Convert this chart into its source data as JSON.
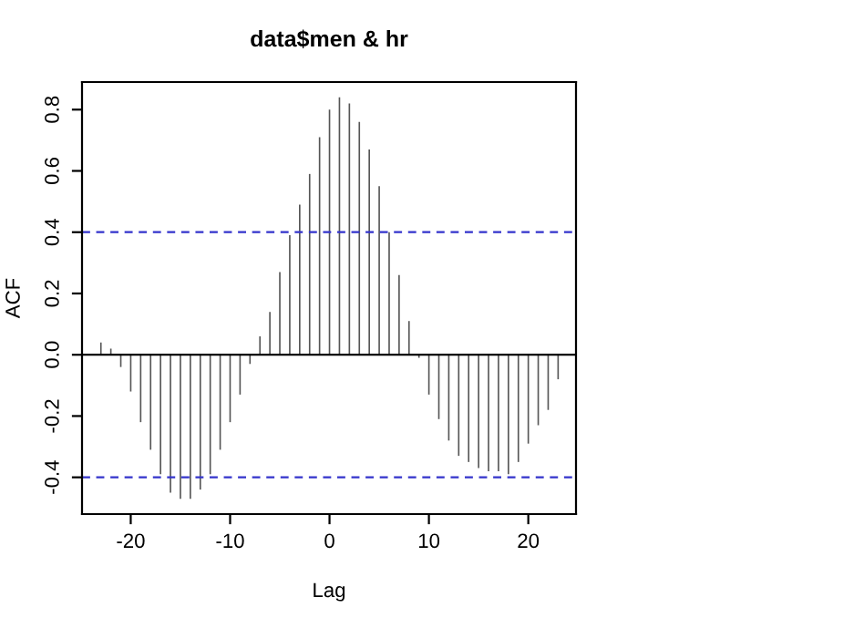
{
  "chart_data": {
    "type": "bar",
    "title": "data$men & hr",
    "xlabel": "Lag",
    "ylabel": "ACF",
    "x": [
      -23,
      -22,
      -21,
      -20,
      -19,
      -18,
      -17,
      -16,
      -15,
      -14,
      -13,
      -12,
      -11,
      -10,
      -9,
      -8,
      -7,
      -6,
      -5,
      -4,
      -3,
      -2,
      -1,
      0,
      1,
      2,
      3,
      4,
      5,
      6,
      7,
      8,
      9,
      10,
      11,
      12,
      13,
      14,
      15,
      16,
      17,
      18,
      19,
      20,
      21,
      22,
      23
    ],
    "values": [
      0.04,
      0.02,
      -0.04,
      -0.12,
      -0.22,
      -0.31,
      -0.39,
      -0.45,
      -0.47,
      -0.47,
      -0.44,
      -0.39,
      -0.31,
      -0.22,
      -0.13,
      -0.03,
      0.06,
      0.14,
      0.27,
      0.39,
      0.49,
      0.59,
      0.71,
      0.8,
      0.84,
      0.82,
      0.76,
      0.67,
      0.55,
      0.4,
      0.26,
      0.11,
      -0.01,
      -0.13,
      -0.21,
      -0.28,
      -0.33,
      -0.35,
      -0.37,
      -0.38,
      -0.38,
      -0.39,
      -0.35,
      -0.29,
      -0.23,
      -0.18,
      -0.08
    ],
    "color": "#555555",
    "xlim": [
      -24.9,
      24.8
    ],
    "ylim": [
      -0.52,
      0.89
    ],
    "xticks": [
      {
        "value": -20,
        "label": "-20"
      },
      {
        "value": -10,
        "label": "-10"
      },
      0,
      10,
      20
    ],
    "yticks": [
      {
        "value": -0.4,
        "label": "-0.4"
      },
      {
        "value": -0.2,
        "label": "-0.2"
      },
      {
        "value": 0,
        "label": "0.0"
      },
      0.2,
      0.4,
      0.6,
      0.8
    ],
    "ref_lines": [
      {
        "axis": "y",
        "value": 0,
        "color": "#000000",
        "line_style": "solid"
      },
      {
        "axis": "y",
        "value": 0.4,
        "color": "#3333cc",
        "line_style": "dashed"
      },
      {
        "axis": "y",
        "value": -0.4,
        "color": "#3333cc",
        "line_style": "dashed"
      }
    ],
    "grid": false,
    "legend": false
  }
}
